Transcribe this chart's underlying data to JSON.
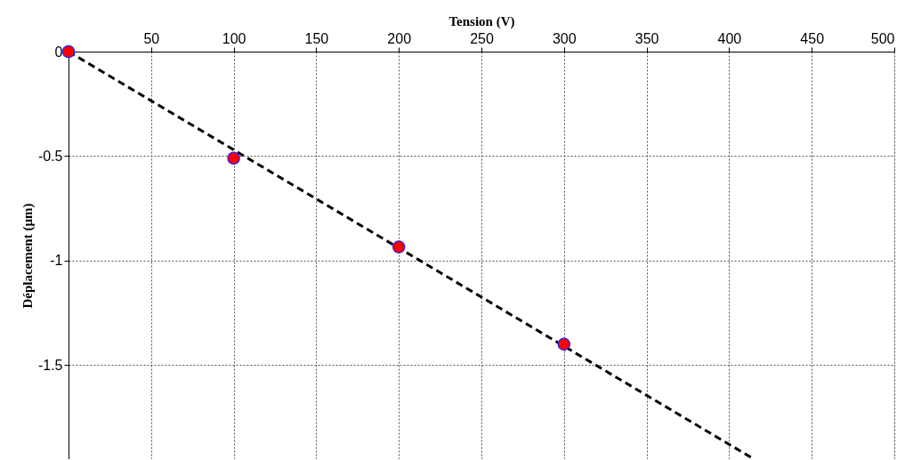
{
  "chart_data": {
    "type": "scatter",
    "xlabel": "Tension (V)",
    "ylabel": "Déplacement (µm)",
    "xlim": [
      0,
      500
    ],
    "xticks": [
      50,
      100,
      150,
      200,
      250,
      300,
      350,
      400,
      450,
      500
    ],
    "ylim": [
      -1.95,
      0
    ],
    "yticks": [
      0,
      -0.5,
      -1,
      -1.5
    ],
    "grid": true,
    "series": [
      {
        "color": "#ff0000",
        "marker": "circle",
        "x": [
          0,
          100,
          200,
          300
        ],
        "values": [
          0,
          -0.51,
          -0.935,
          -1.4
        ]
      },
      {
        "type": "line",
        "color": "#000000",
        "marker": "none",
        "line_style": "dashed",
        "x": [
          0,
          415
        ],
        "values": [
          0,
          -1.95
        ]
      }
    ]
  }
}
